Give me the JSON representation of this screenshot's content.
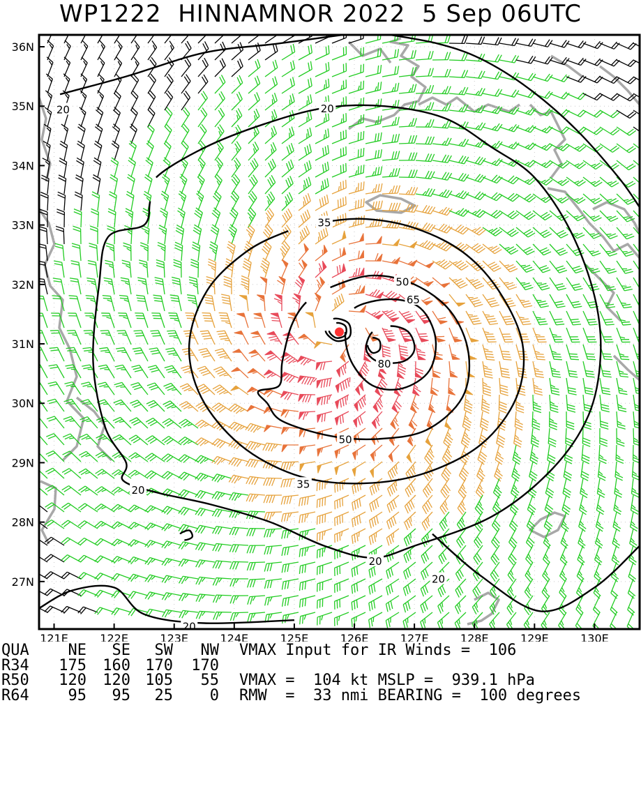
{
  "title": "WP1222  HINNAMNOR 2022  5 Sep 06UTC",
  "chart_data": {
    "type": "wind_barb_contour_map",
    "title": "WP1222  HINNAMNOR 2022  5 Sep 06UTC",
    "xlim": [
      120.75,
      130.75
    ],
    "ylim": [
      26.2,
      36.2
    ],
    "x_ticks": [
      {
        "value": 121,
        "label": "121E"
      },
      {
        "value": 122,
        "label": "122E"
      },
      {
        "value": 123,
        "label": "123E"
      },
      {
        "value": 124,
        "label": "124E"
      },
      {
        "value": 125,
        "label": "125E"
      },
      {
        "value": 126,
        "label": "126E"
      },
      {
        "value": 127,
        "label": "127E"
      },
      {
        "value": 128,
        "label": "128E"
      },
      {
        "value": 129,
        "label": "129E"
      },
      {
        "value": 130,
        "label": "130E"
      }
    ],
    "y_ticks": [
      {
        "value": 27,
        "label": "27N"
      },
      {
        "value": 28,
        "label": "28N"
      },
      {
        "value": 29,
        "label": "29N"
      },
      {
        "value": 30,
        "label": "30N"
      },
      {
        "value": 31,
        "label": "31N"
      },
      {
        "value": 32,
        "label": "32N"
      },
      {
        "value": 33,
        "label": "33N"
      },
      {
        "value": 34,
        "label": "34N"
      },
      {
        "value": 35,
        "label": "35N"
      },
      {
        "value": 36,
        "label": "36N"
      }
    ],
    "storm_center": {
      "lon": 125.75,
      "lat": 31.2
    },
    "contour_levels_kt": [
      20,
      35,
      50,
      65,
      80
    ],
    "contours": [
      {
        "level": 20,
        "label": "20",
        "points": [
          [
            121.1,
            35.2
          ],
          [
            122.2,
            35.5
          ],
          [
            123.5,
            35.9
          ],
          [
            124.7,
            36.05
          ],
          [
            125.8,
            36.2
          ]
        ],
        "labels": [
          [
            121.15,
            34.95
          ]
        ]
      },
      {
        "level": 20,
        "label": "20",
        "points": [
          [
            126.6,
            36.2
          ],
          [
            127.4,
            36.05
          ],
          [
            128.1,
            35.8
          ],
          [
            128.9,
            35.3
          ],
          [
            129.7,
            34.6
          ],
          [
            130.4,
            33.8
          ],
          [
            130.75,
            33.3
          ]
        ],
        "labels": []
      },
      {
        "level": 20,
        "label": "20",
        "points": [
          [
            122.7,
            33.8
          ],
          [
            123.5,
            34.3
          ],
          [
            124.5,
            34.7
          ],
          [
            125.5,
            34.97
          ],
          [
            126.5,
            35.0
          ],
          [
            127.5,
            34.8
          ],
          [
            128.3,
            34.3
          ],
          [
            129.0,
            33.8
          ],
          [
            129.6,
            32.9
          ],
          [
            130.0,
            31.8
          ],
          [
            130.1,
            30.8
          ],
          [
            129.9,
            29.8
          ],
          [
            129.3,
            28.9
          ],
          [
            128.3,
            28.1
          ],
          [
            127.0,
            27.6
          ],
          [
            126.3,
            27.4
          ],
          [
            125.5,
            27.6
          ],
          [
            124.6,
            28.0
          ],
          [
            123.6,
            28.3
          ],
          [
            122.7,
            28.5
          ],
          [
            122.15,
            28.7
          ],
          [
            122.2,
            29.0
          ],
          [
            121.85,
            29.6
          ],
          [
            121.65,
            30.7
          ],
          [
            121.75,
            32.0
          ],
          [
            121.9,
            32.8
          ],
          [
            122.5,
            33.0
          ],
          [
            122.6,
            33.4
          ],
          [
            122.7,
            33.8
          ]
        ],
        "labels": [
          [
            125.55,
            34.97
          ],
          [
            122.4,
            28.55
          ],
          [
            126.35,
            27.35
          ]
        ]
      },
      {
        "level": 20,
        "label": "20",
        "points": [
          [
            127.3,
            27.8
          ],
          [
            128.1,
            27.1
          ],
          [
            129.1,
            26.5
          ],
          [
            130.0,
            26.9
          ],
          [
            130.75,
            27.6
          ]
        ],
        "labels": [
          [
            127.4,
            27.05
          ]
        ]
      },
      {
        "level": 20,
        "label": "20",
        "points": [
          [
            120.75,
            26.55
          ],
          [
            121.3,
            26.85
          ],
          [
            122.0,
            26.9
          ],
          [
            122.5,
            26.45
          ],
          [
            123.5,
            26.3
          ],
          [
            125.0,
            26.35
          ]
        ],
        "labels": [
          [
            123.25,
            26.25
          ]
        ]
      },
      {
        "level": 35,
        "label": "35",
        "points": [
          [
            125.5,
            33.05
          ],
          [
            126.2,
            33.1
          ],
          [
            127.0,
            32.95
          ],
          [
            127.8,
            32.55
          ],
          [
            128.4,
            31.9
          ],
          [
            128.8,
            31.0
          ],
          [
            128.7,
            30.1
          ],
          [
            128.1,
            29.3
          ],
          [
            127.1,
            28.8
          ],
          [
            126.0,
            28.65
          ],
          [
            125.0,
            28.8
          ],
          [
            124.1,
            29.3
          ],
          [
            123.45,
            30.1
          ],
          [
            123.25,
            31.0
          ],
          [
            123.55,
            31.9
          ],
          [
            124.2,
            32.55
          ],
          [
            124.9,
            32.9
          ],
          [
            125.5,
            33.05
          ]
        ],
        "labels": [
          [
            125.5,
            33.05
          ],
          [
            125.15,
            28.65
          ]
        ]
      },
      {
        "level": 50,
        "label": "50",
        "points": [
          [
            125.6,
            31.95
          ],
          [
            126.3,
            32.15
          ],
          [
            127.0,
            32.0
          ],
          [
            127.6,
            31.55
          ],
          [
            127.9,
            30.85
          ],
          [
            127.8,
            30.1
          ],
          [
            127.2,
            29.55
          ],
          [
            126.4,
            29.4
          ],
          [
            125.6,
            29.45
          ],
          [
            124.8,
            29.7
          ],
          [
            124.55,
            30.0
          ],
          [
            124.4,
            30.2
          ],
          [
            124.75,
            30.3
          ],
          [
            124.8,
            30.7
          ],
          [
            124.95,
            31.3
          ],
          [
            125.2,
            31.7
          ],
          [
            125.6,
            31.95
          ]
        ],
        "labels": [
          [
            126.8,
            32.05
          ],
          [
            125.85,
            29.4
          ]
        ]
      },
      {
        "level": 65,
        "label": "65",
        "points": [
          [
            126.0,
            31.6
          ],
          [
            126.6,
            31.75
          ],
          [
            127.1,
            31.6
          ],
          [
            127.35,
            31.1
          ],
          [
            127.25,
            30.55
          ],
          [
            126.8,
            30.25
          ],
          [
            126.3,
            30.3
          ],
          [
            125.95,
            30.7
          ],
          [
            125.85,
            31.2
          ],
          [
            126.0,
            31.6
          ]
        ],
        "labels": [
          [
            126.98,
            31.75
          ]
        ]
      },
      {
        "level": 80,
        "label": "80",
        "points": [
          [
            126.6,
            31.3
          ],
          [
            126.9,
            31.2
          ],
          [
            127.0,
            30.9
          ],
          [
            126.8,
            30.7
          ],
          [
            126.4,
            30.7
          ],
          [
            126.2,
            30.9
          ],
          [
            126.3,
            31.2
          ],
          [
            126.6,
            31.3
          ]
        ],
        "labels": [
          [
            126.5,
            30.67
          ]
        ]
      },
      {
        "level": 80,
        "label": "",
        "points": [
          [
            126.3,
            31.1
          ],
          [
            126.42,
            31.05
          ],
          [
            126.42,
            30.9
          ],
          [
            126.3,
            30.85
          ],
          [
            126.22,
            30.98
          ],
          [
            126.3,
            31.1
          ]
        ],
        "labels": []
      },
      {
        "level": 65,
        "label": "",
        "points": [
          [
            125.7,
            31.35
          ],
          [
            125.85,
            31.3
          ],
          [
            125.85,
            31.15
          ],
          [
            125.7,
            31.1
          ],
          [
            125.58,
            31.22
          ],
          [
            125.7,
            31.35
          ]
        ],
        "labels": []
      },
      {
        "level": 50,
        "label": "",
        "points": [
          [
            125.65,
            31.42
          ],
          [
            125.9,
            31.35
          ],
          [
            125.92,
            31.12
          ],
          [
            125.7,
            31.05
          ],
          [
            125.52,
            31.22
          ],
          [
            125.65,
            31.42
          ]
        ],
        "labels": []
      },
      {
        "level": 20,
        "label": "",
        "points": [
          [
            123.1,
            27.8
          ],
          [
            123.25,
            27.86
          ],
          [
            123.3,
            27.75
          ],
          [
            123.17,
            27.7
          ],
          [
            123.1,
            27.8
          ]
        ],
        "labels": []
      }
    ],
    "barb_colors": [
      {
        "range": "below 20 kt",
        "color": "#000000"
      },
      {
        "range": "20-35 kt",
        "color": "#22cc22"
      },
      {
        "range": "35-50 kt",
        "color": "#e6a23c"
      },
      {
        "range": "50-65 kt",
        "color": "#e8733a"
      },
      {
        "range": "65+ kt",
        "color": "#e84a5a"
      }
    ],
    "coastline_color": "#a8a8a8",
    "contour_color": "#000000",
    "center_color": "#ff3333"
  },
  "info": {
    "row1": {
      "label": "QUA",
      "ne": "NE",
      "se": "SE",
      "sw": "SW",
      "nw": "NW",
      "text": "VMAX Input for IR Winds =  106"
    },
    "row2": {
      "label": "R34",
      "ne": "175",
      "se": "160",
      "sw": "170",
      "nw": "170",
      "text": ""
    },
    "row3": {
      "label": "R50",
      "ne": "120",
      "se": "120",
      "sw": "105",
      "nw": "55",
      "text": "VMAX =  104 kt MSLP =  939.1 hPa"
    },
    "row4": {
      "label": "R64",
      "ne": "95",
      "se": "95",
      "sw": "25",
      "nw": "0",
      "text": "RMW  =  33 nmi BEARING =  100 degrees"
    }
  }
}
